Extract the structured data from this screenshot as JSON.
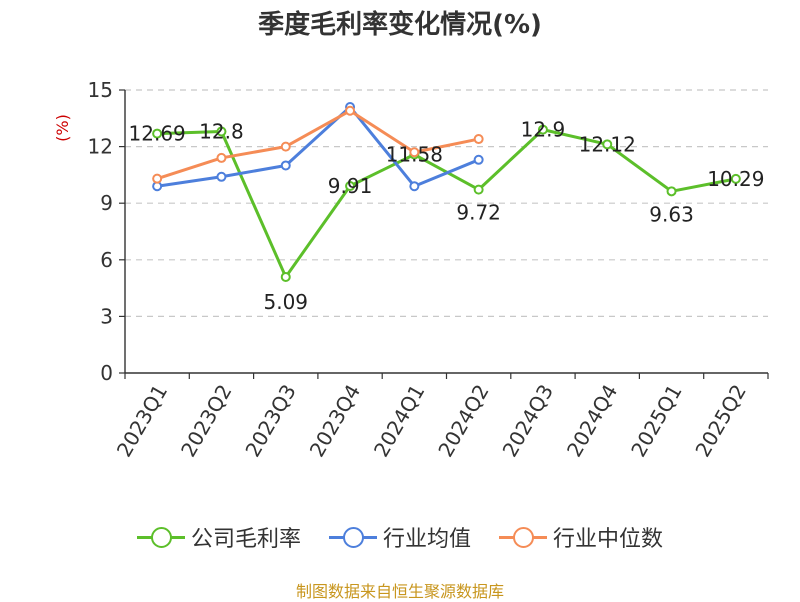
{
  "chart_data": {
    "type": "line",
    "title": "季度毛利率变化情况(%)",
    "ylabel": "(%)",
    "xlabel": "",
    "ylim": [
      0,
      15
    ],
    "yticks": [
      0,
      3,
      6,
      9,
      12,
      15
    ],
    "grid": true,
    "legend_position": "bottom",
    "categories": [
      "2023Q1",
      "2023Q2",
      "2023Q3",
      "2023Q4",
      "2024Q1",
      "2024Q2",
      "2024Q3",
      "2024Q4",
      "2025Q1",
      "2025Q2"
    ],
    "series": [
      {
        "name": "公司毛利率",
        "color": "#5cbf2a",
        "values": [
          12.69,
          12.8,
          5.09,
          9.91,
          11.58,
          9.72,
          12.9,
          12.12,
          9.63,
          10.29
        ],
        "labels": [
          "12.69",
          "12.8",
          "5.09",
          "9.91",
          "11.58",
          "9.72",
          "12.9",
          "12.12",
          "9.63",
          "10.29"
        ]
      },
      {
        "name": "行业均值",
        "color": "#4d7fdc",
        "values": [
          9.9,
          10.4,
          11.0,
          14.1,
          9.9,
          11.3,
          null,
          null,
          null,
          null
        ]
      },
      {
        "name": "行业中位数",
        "color": "#f58c56",
        "values": [
          10.3,
          11.4,
          12.0,
          13.9,
          11.7,
          12.4,
          null,
          null,
          null,
          null
        ]
      }
    ]
  },
  "footer": {
    "source": "制图数据来自恒生聚源数据库"
  }
}
